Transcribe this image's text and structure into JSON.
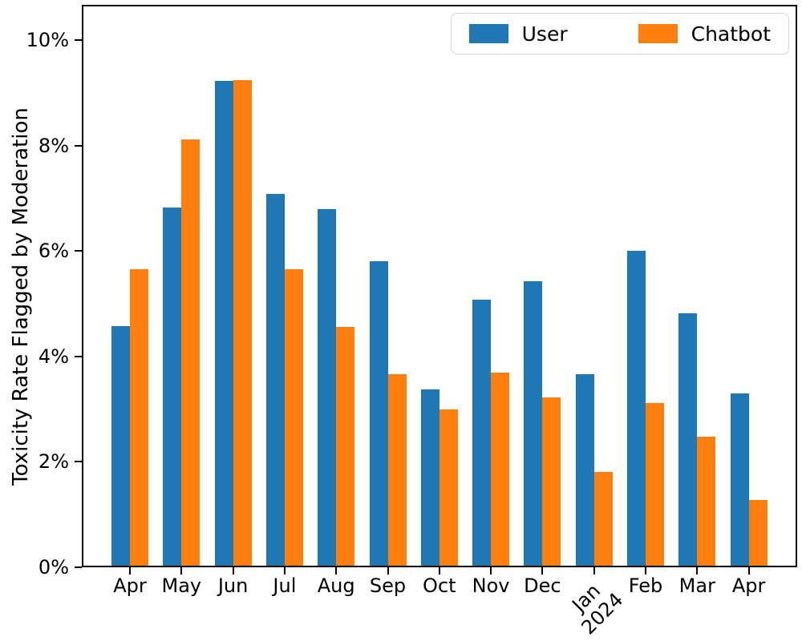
{
  "chart_data": {
    "type": "bar",
    "title": "",
    "ylabel": "Toxicity Rate Flagged by Moderation",
    "xlabel": "",
    "categories": [
      "Apr",
      "May",
      "Jun",
      "Jul",
      "Aug",
      "Sep",
      "Oct",
      "Nov",
      "Dec",
      "Jan 2024",
      "Feb",
      "Mar",
      "Apr"
    ],
    "series": [
      {
        "name": "User",
        "color": "#1f77b4",
        "values": [
          4.55,
          6.8,
          9.19,
          7.06,
          6.77,
          5.78,
          3.35,
          5.05,
          5.4,
          3.64,
          5.98,
          4.79,
          3.27
        ]
      },
      {
        "name": "Chatbot",
        "color": "#ff7f0e",
        "values": [
          5.63,
          8.08,
          9.21,
          5.62,
          4.53,
          3.64,
          2.97,
          3.67,
          3.19,
          1.78,
          3.09,
          2.44,
          1.25
        ]
      }
    ],
    "ylim": [
      0,
      10.67
    ],
    "yticks": [
      {
        "value": 0,
        "label": "0%"
      },
      {
        "value": 2,
        "label": "2%"
      },
      {
        "value": 4,
        "label": "4%"
      },
      {
        "value": 6,
        "label": "6%"
      },
      {
        "value": 8,
        "label": "8%"
      },
      {
        "value": 10,
        "label": "10%"
      }
    ],
    "xticks": [
      {
        "label": "Apr"
      },
      {
        "label": "May"
      },
      {
        "label": "Jun"
      },
      {
        "label": "Jul"
      },
      {
        "label": "Aug"
      },
      {
        "label": "Sep"
      },
      {
        "label": "Oct"
      },
      {
        "label": "Nov"
      },
      {
        "label": "Dec"
      },
      {
        "label": "Jan 2024",
        "lines": [
          "Jan",
          "2024"
        ],
        "rotated": true
      },
      {
        "label": "Feb"
      },
      {
        "label": "Mar"
      },
      {
        "label": "Apr"
      }
    ],
    "legend_position": "upper right",
    "grid": false
  },
  "legend": {
    "items": [
      {
        "label": "User",
        "color": "#1f77b4"
      },
      {
        "label": "Chatbot",
        "color": "#ff7f0e"
      }
    ]
  }
}
